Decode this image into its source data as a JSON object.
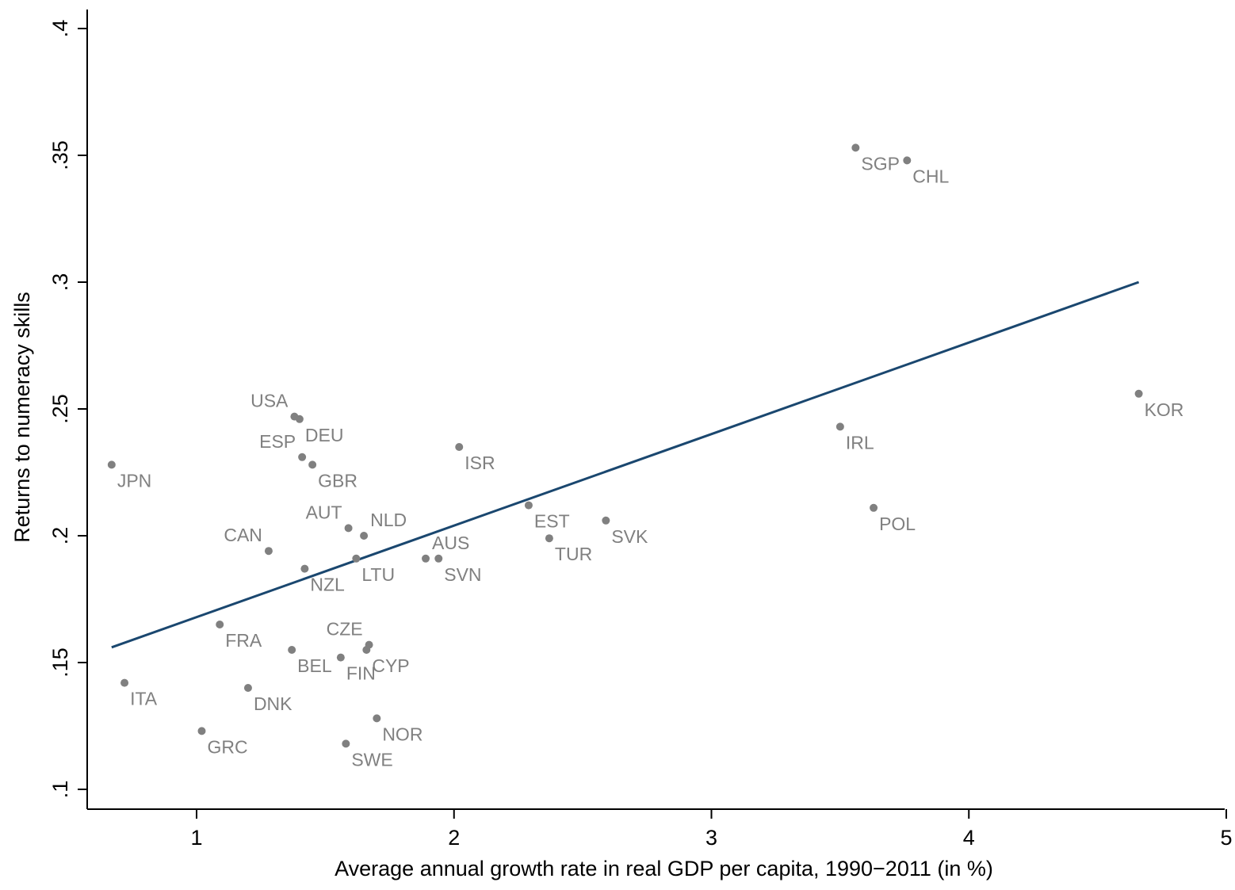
{
  "chart_data": {
    "type": "scatter",
    "title": "",
    "xlabel": "Average annual growth rate in real GDP per capita, 1990−2011 (in %)",
    "ylabel": "Returns to numeracy skills",
    "xlim": [
      0.63,
      5.02
    ],
    "ylim": [
      0.092,
      0.402
    ],
    "x_ticks": [
      1,
      2,
      3,
      4,
      5
    ],
    "x_tick_labels": [
      "1",
      "2",
      "3",
      "4",
      "5"
    ],
    "y_ticks": [
      0.1,
      0.15,
      0.2,
      0.25,
      0.3,
      0.35,
      0.4
    ],
    "y_tick_labels": [
      ".1",
      ".15",
      ".2",
      ".25",
      ".3",
      ".35",
      ".4"
    ],
    "grid": false,
    "legend": "none",
    "colors": {
      "points": "#808080",
      "labels": "#808080",
      "fit_line": "#1a476f",
      "axes": "#000000"
    },
    "points": [
      {
        "label": "JPN",
        "x": 0.67,
        "y": 0.228,
        "label_pos": "below-right"
      },
      {
        "label": "ITA",
        "x": 0.72,
        "y": 0.142,
        "label_pos": "below-right"
      },
      {
        "label": "GRC",
        "x": 1.02,
        "y": 0.123,
        "label_pos": "below-right"
      },
      {
        "label": "FRA",
        "x": 1.09,
        "y": 0.165,
        "label_pos": "below-right"
      },
      {
        "label": "DNK",
        "x": 1.2,
        "y": 0.14,
        "label_pos": "below-right"
      },
      {
        "label": "CAN",
        "x": 1.28,
        "y": 0.194,
        "label_pos": "above-left"
      },
      {
        "label": "BEL",
        "x": 1.37,
        "y": 0.155,
        "label_pos": "below-right"
      },
      {
        "label": "USA",
        "x": 1.38,
        "y": 0.247,
        "label_pos": "above-left"
      },
      {
        "label": "DEU",
        "x": 1.4,
        "y": 0.246,
        "label_pos": "below-right"
      },
      {
        "label": "ESP",
        "x": 1.41,
        "y": 0.231,
        "label_pos": "above-left"
      },
      {
        "label": "NZL",
        "x": 1.42,
        "y": 0.187,
        "label_pos": "below-right"
      },
      {
        "label": "GBR",
        "x": 1.45,
        "y": 0.228,
        "label_pos": "below-right"
      },
      {
        "label": "FIN",
        "x": 1.56,
        "y": 0.152,
        "label_pos": "below-right"
      },
      {
        "label": "SWE",
        "x": 1.58,
        "y": 0.118,
        "label_pos": "below-right"
      },
      {
        "label": "AUT",
        "x": 1.59,
        "y": 0.203,
        "label_pos": "above-left"
      },
      {
        "label": "LTU",
        "x": 1.62,
        "y": 0.191,
        "label_pos": "below-right"
      },
      {
        "label": "NLD",
        "x": 1.65,
        "y": 0.2,
        "label_pos": "above-right"
      },
      {
        "label": "CYP",
        "x": 1.66,
        "y": 0.155,
        "label_pos": "below-right"
      },
      {
        "label": "CZE",
        "x": 1.67,
        "y": 0.157,
        "label_pos": "above-left"
      },
      {
        "label": "NOR",
        "x": 1.7,
        "y": 0.128,
        "label_pos": "below-right"
      },
      {
        "label": "AUS",
        "x": 1.89,
        "y": 0.191,
        "label_pos": "above-right"
      },
      {
        "label": "SVN",
        "x": 1.94,
        "y": 0.191,
        "label_pos": "below-right"
      },
      {
        "label": "ISR",
        "x": 2.02,
        "y": 0.235,
        "label_pos": "below-right"
      },
      {
        "label": "EST",
        "x": 2.29,
        "y": 0.212,
        "label_pos": "below-right"
      },
      {
        "label": "TUR",
        "x": 2.37,
        "y": 0.199,
        "label_pos": "below-right"
      },
      {
        "label": "SVK",
        "x": 2.59,
        "y": 0.206,
        "label_pos": "below-right"
      },
      {
        "label": "IRL",
        "x": 3.5,
        "y": 0.243,
        "label_pos": "below-right"
      },
      {
        "label": "SGP",
        "x": 3.56,
        "y": 0.353,
        "label_pos": "below-right"
      },
      {
        "label": "POL",
        "x": 3.63,
        "y": 0.211,
        "label_pos": "below-right"
      },
      {
        "label": "CHL",
        "x": 3.76,
        "y": 0.348,
        "label_pos": "below-right"
      },
      {
        "label": "KOR",
        "x": 4.66,
        "y": 0.256,
        "label_pos": "below-right"
      }
    ],
    "fit_line": {
      "x": [
        0.67,
        4.66
      ],
      "y": [
        0.156,
        0.3
      ]
    }
  }
}
